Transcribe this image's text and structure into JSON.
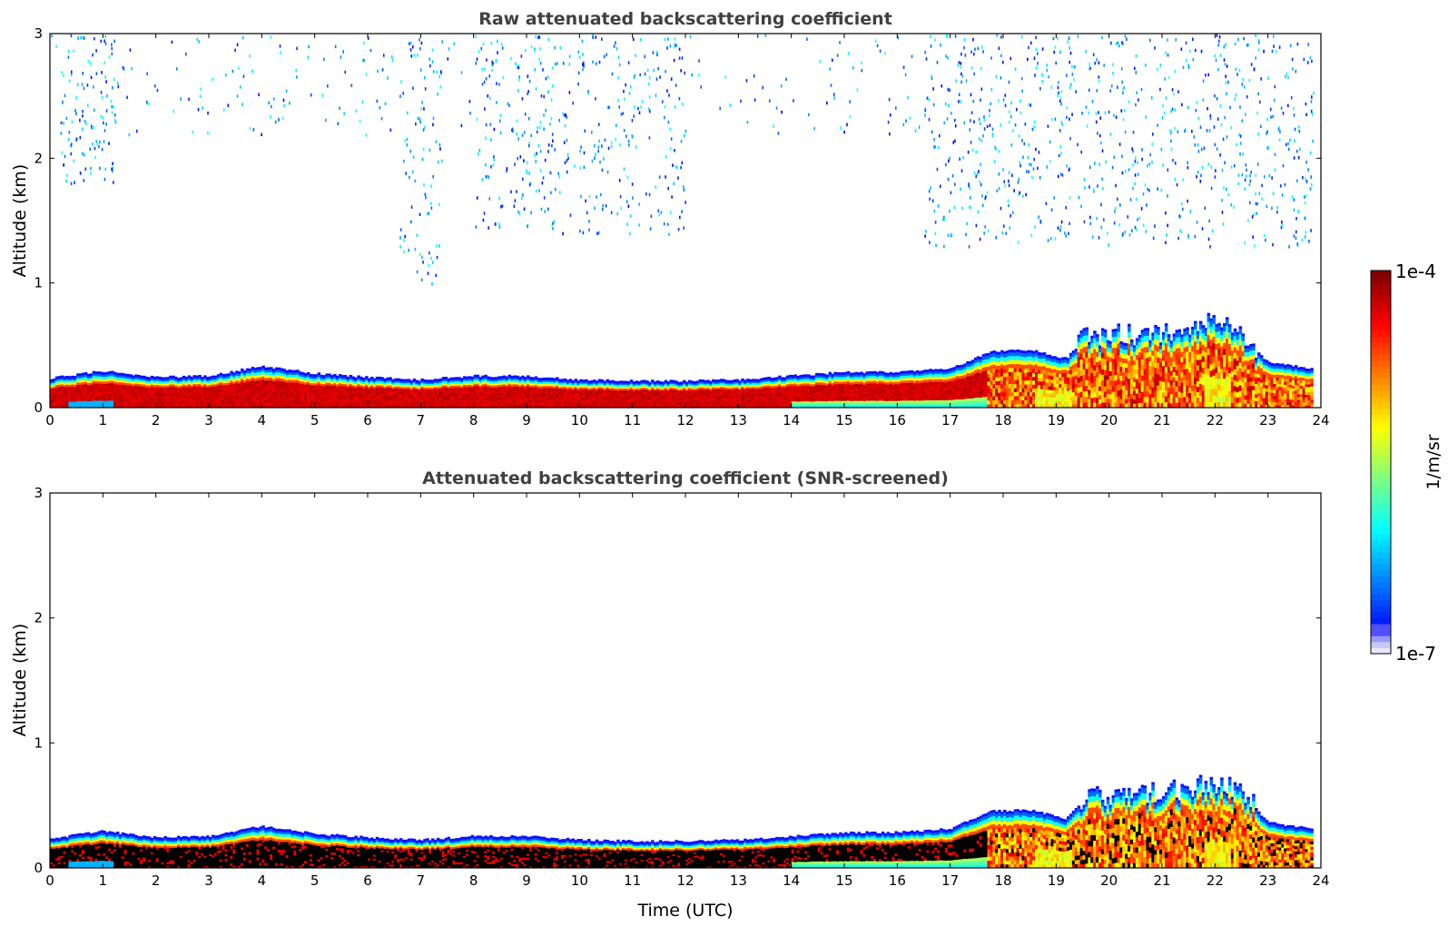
{
  "chart_data": [
    {
      "type": "heatmap",
      "title": "Raw attenuated backscattering coefficient",
      "xlabel": "",
      "ylabel": "Altitude (km)",
      "xlim": [
        0,
        24
      ],
      "ylim": [
        0,
        3
      ],
      "x_ticks": [
        "0",
        "1",
        "2",
        "3",
        "4",
        "5",
        "6",
        "7",
        "8",
        "9",
        "10",
        "11",
        "12",
        "13",
        "14",
        "15",
        "16",
        "17",
        "18",
        "19",
        "20",
        "21",
        "22",
        "23",
        "24"
      ],
      "y_ticks": [
        "0",
        "1",
        "2",
        "3"
      ],
      "colormap": "jet",
      "color_scale": "log",
      "aerosol_layer_top_km": {
        "time_utc": [
          0,
          1,
          2,
          3,
          4,
          5,
          6,
          7,
          8,
          9,
          10,
          11,
          12,
          13,
          14,
          15,
          16,
          17,
          17.8,
          18.5,
          19.2,
          19.5,
          20,
          20.5,
          21,
          21.5,
          22,
          22.5,
          23,
          23.8
        ],
        "top_km": [
          0.22,
          0.28,
          0.23,
          0.24,
          0.32,
          0.26,
          0.23,
          0.21,
          0.24,
          0.24,
          0.21,
          0.2,
          0.2,
          0.21,
          0.24,
          0.27,
          0.27,
          0.3,
          0.44,
          0.45,
          0.38,
          0.52,
          0.56,
          0.55,
          0.58,
          0.6,
          0.65,
          0.58,
          0.35,
          0.3
        ]
      },
      "sparse_signal_above_1km": true
    },
    {
      "type": "heatmap",
      "title": "Attenuated backscattering coefficient (SNR-screened)",
      "xlabel": "Time (UTC)",
      "ylabel": "Altitude (km)",
      "xlim": [
        0,
        24
      ],
      "ylim": [
        0,
        3
      ],
      "x_ticks": [
        "0",
        "1",
        "2",
        "3",
        "4",
        "5",
        "6",
        "7",
        "8",
        "9",
        "10",
        "11",
        "12",
        "13",
        "14",
        "15",
        "16",
        "17",
        "18",
        "19",
        "20",
        "21",
        "22",
        "23",
        "24"
      ],
      "y_ticks": [
        "0",
        "1",
        "2",
        "3"
      ],
      "colormap": "jet",
      "color_scale": "log",
      "aerosol_layer_top_km": {
        "time_utc": [
          0,
          1,
          2,
          3,
          4,
          5,
          6,
          7,
          8,
          9,
          10,
          11,
          12,
          13,
          14,
          15,
          16,
          17,
          17.8,
          18.5,
          19.2,
          19.5,
          20,
          20.5,
          21,
          21.5,
          22,
          22.5,
          23,
          23.8
        ],
        "top_km": [
          0.22,
          0.28,
          0.23,
          0.24,
          0.32,
          0.26,
          0.23,
          0.21,
          0.24,
          0.24,
          0.21,
          0.2,
          0.2,
          0.21,
          0.24,
          0.27,
          0.27,
          0.3,
          0.44,
          0.45,
          0.38,
          0.52,
          0.56,
          0.55,
          0.58,
          0.6,
          0.65,
          0.58,
          0.35,
          0.3
        ]
      },
      "sparse_signal_above_1km": false
    }
  ],
  "colorbar": {
    "label": "1/m/sr",
    "max_label": "1e-4",
    "min_label": "1e-7",
    "colors": [
      "#e8e8f8",
      "#c8c8f0",
      "#9898ff",
      "#5050ff",
      "#0000ff",
      "#0050ff",
      "#00a0ff",
      "#00e0ff",
      "#30ffd0",
      "#80ff80",
      "#d0ff30",
      "#ffe000",
      "#ffa000",
      "#ff5000",
      "#e00000",
      "#800000"
    ]
  }
}
